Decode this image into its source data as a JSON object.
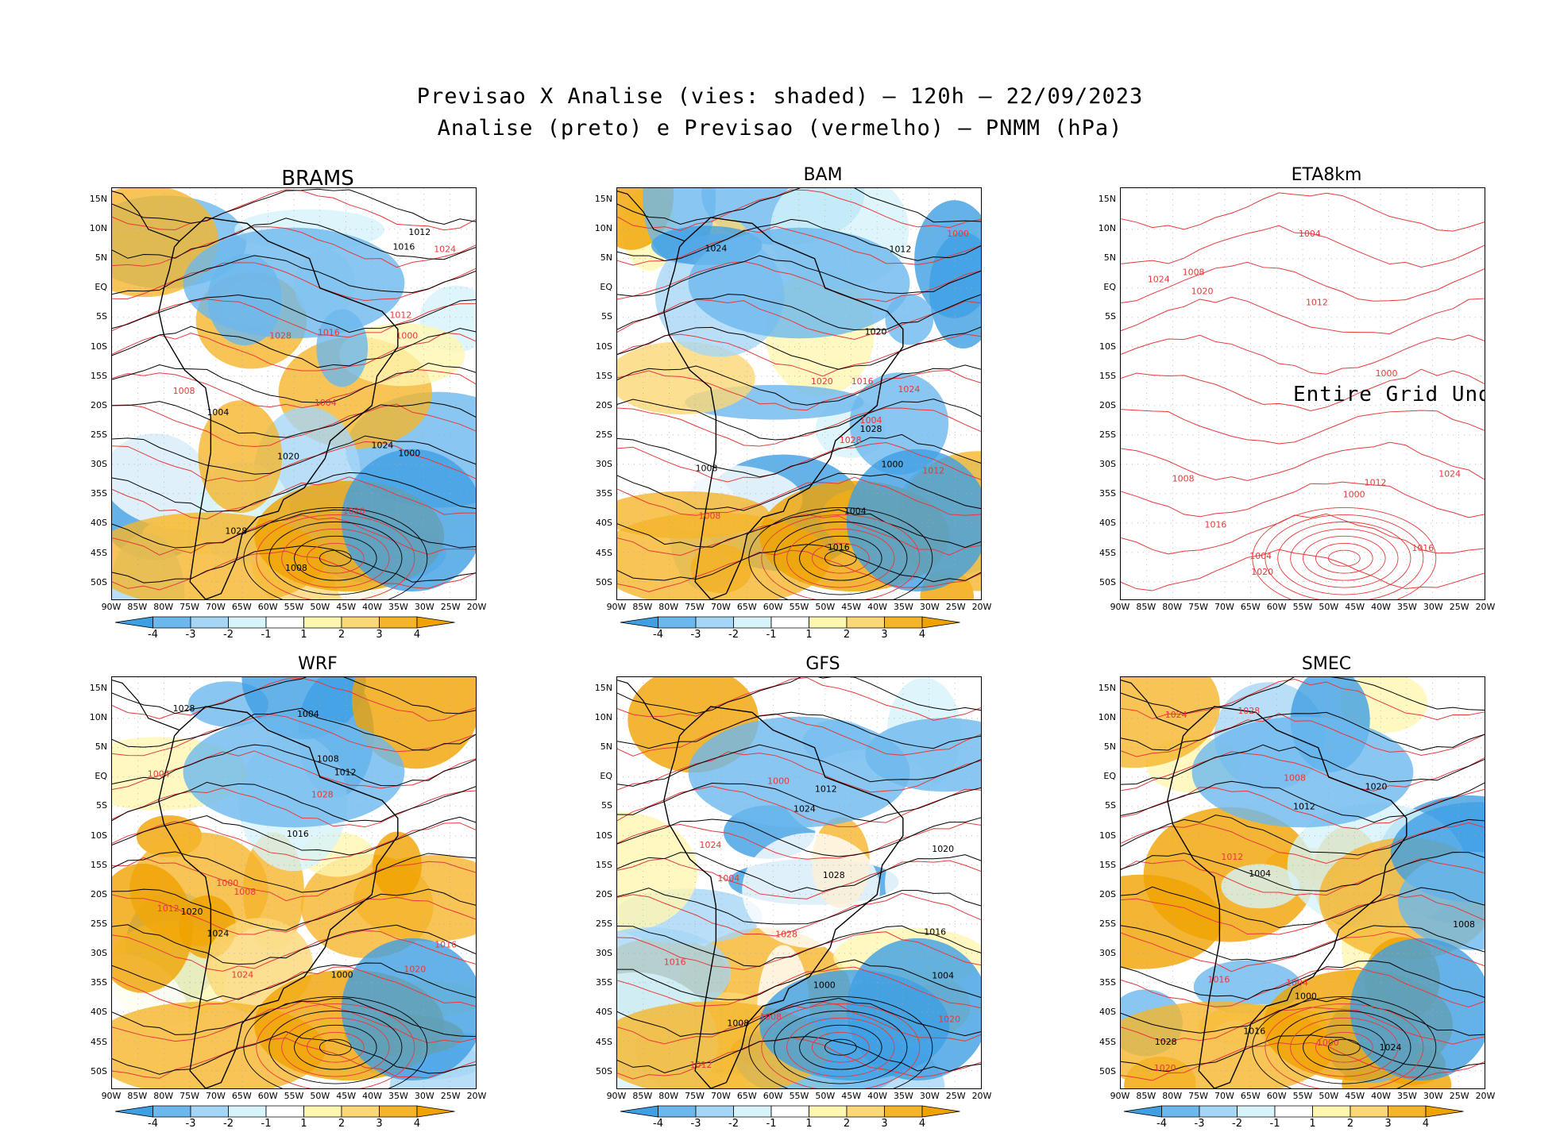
{
  "title": {
    "line1": "Previsao X Analise (vies: shaded) – 120h – 22/09/2023",
    "line2": "Analise (preto) e Previsao (vermelho) – PNMM (hPa)"
  },
  "y_ticks": [
    "15N",
    "10N",
    "5N",
    "EQ",
    "5S",
    "10S",
    "15S",
    "20S",
    "25S",
    "30S",
    "35S",
    "40S",
    "45S",
    "50S"
  ],
  "x_ticks": [
    "90W",
    "85W",
    "80W",
    "75W",
    "70W",
    "65W",
    "60W",
    "55W",
    "50W",
    "45W",
    "40W",
    "35W",
    "30W",
    "25W",
    "20W"
  ],
  "colorbar": {
    "labels": [
      "-4",
      "-3",
      "-2",
      "-1",
      "1",
      "2",
      "3",
      "4"
    ],
    "colors": [
      "#3e9fe3",
      "#6cb8ee",
      "#a6d6f6",
      "#d6f4fa",
      "#ffffff",
      "#fff6b0",
      "#fbd776",
      "#f5b52b",
      "#f0a300"
    ]
  },
  "colors": {
    "analysis": "#000000",
    "forecast": "#e8383a"
  },
  "panels": [
    {
      "name": "BRAMS",
      "title_size": "big",
      "has_colorbar": true,
      "undefined_text": "",
      "contour_labels": [
        "1012",
        "1008",
        "1004",
        "1016",
        "1020",
        "1024",
        "1028",
        "1000"
      ]
    },
    {
      "name": "BAM",
      "title_size": "normal",
      "has_colorbar": true,
      "undefined_text": "",
      "contour_labels": [
        "1012",
        "1008",
        "1004",
        "1016",
        "1020",
        "1024",
        "1028",
        "1000"
      ]
    },
    {
      "name": "ETA8km",
      "title_size": "normal",
      "has_colorbar": false,
      "undefined_text": "Entire Grid Undefined",
      "contour_labels": [
        "1008",
        "1012",
        "1016",
        "1020",
        "1024",
        "1004",
        "1000"
      ]
    },
    {
      "name": "WRF",
      "title_size": "normal",
      "has_colorbar": true,
      "undefined_text": "",
      "contour_labels": [
        "1012",
        "1008",
        "1016",
        "1020",
        "1024",
        "1028",
        "1004",
        "1000"
      ]
    },
    {
      "name": "GFS",
      "title_size": "normal",
      "has_colorbar": true,
      "undefined_text": "",
      "contour_labels": [
        "1012",
        "1008",
        "1016",
        "1020",
        "1024",
        "1028",
        "1004",
        "1000"
      ]
    },
    {
      "name": "SMEC",
      "title_size": "normal",
      "has_colorbar": true,
      "undefined_text": "",
      "contour_labels": [
        "1012",
        "1008",
        "1016",
        "1020",
        "1024",
        "1028",
        "1004",
        "1000"
      ]
    }
  ]
}
